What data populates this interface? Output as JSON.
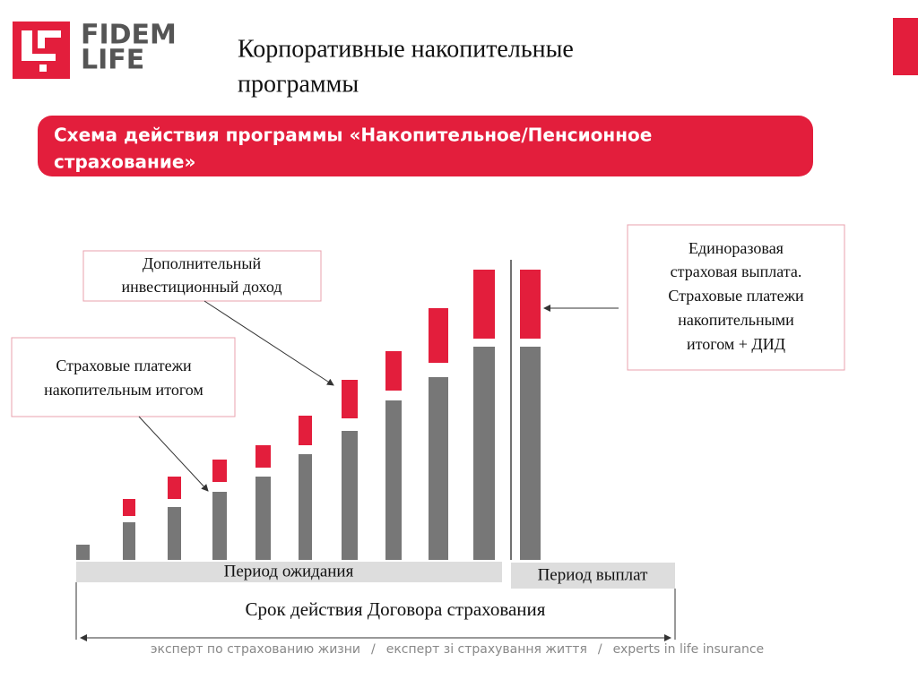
{
  "logo": {
    "line1": "FIDEM",
    "line2": "LIFE"
  },
  "title": {
    "line1": "Корпоративные накопительные",
    "line2": "программы"
  },
  "banner": {
    "line1": "Схема действия программы «Накопительное/Пенсионное",
    "line2": "страхование»"
  },
  "callouts": [
    {
      "lines": [
        "Дополнительный",
        "инвестиционный  доход"
      ]
    },
    {
      "lines": [
        "Страховые платежи",
        "накопительным  итогом"
      ]
    },
    {
      "lines": [
        "Единоразовая",
        "страховая  выплата.",
        "Страховые платежи",
        "накопительными",
        "итогом +  ДИД"
      ]
    }
  ],
  "periods": {
    "waiting": "Период ожидания",
    "payout": "Период выплат",
    "term": "Срок действия Договора страхования"
  },
  "footer": {
    "ru": "эксперт по страхованию жизни",
    "sep1": "/",
    "ua": "експерт зі страхування життя",
    "sep2": "/",
    "en": "experts in life insurance"
  }
}
